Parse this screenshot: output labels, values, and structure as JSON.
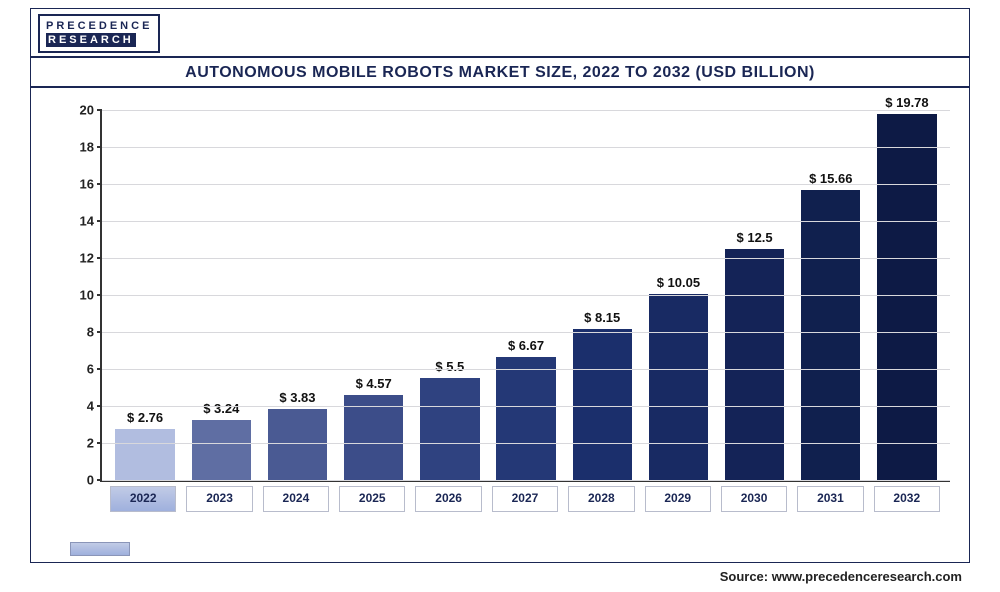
{
  "logo": {
    "line1": "PRECEDENCE",
    "line2": "RESEARCH"
  },
  "title": "AUTONOMOUS MOBILE ROBOTS MARKET SIZE, 2022 TO 2032 (USD BILLION)",
  "source": "Source: www.precedenceresearch.com",
  "chart": {
    "type": "bar",
    "categories": [
      "2022",
      "2023",
      "2024",
      "2025",
      "2026",
      "2027",
      "2028",
      "2029",
      "2030",
      "2031",
      "2032"
    ],
    "value_labels": [
      "$ 2.76",
      "$ 3.24",
      "$ 3.83",
      "$ 4.57",
      "$ 5.5",
      "$ 6.67",
      "$ 8.15",
      "$ 10.05",
      "$ 12.5",
      "$ 15.66",
      "$ 19.78"
    ],
    "values": [
      2.76,
      3.24,
      3.83,
      4.57,
      5.5,
      6.67,
      8.15,
      10.05,
      12.5,
      15.66,
      19.78
    ],
    "bar_colors": [
      "#b1bde0",
      "#5f6ea3",
      "#4a5a93",
      "#3c4d89",
      "#2f4280",
      "#243876",
      "#1b2f6c",
      "#182a63",
      "#142357",
      "#10204e",
      "#0d1a45"
    ],
    "ylim": [
      0,
      20
    ],
    "ytick_step": 2,
    "yticks": [
      "0",
      "2",
      "4",
      "6",
      "8",
      "10",
      "12",
      "14",
      "16",
      "18",
      "20"
    ],
    "background_color": "#ffffff",
    "grid_color": "#d8d8dc",
    "axis_color": "#333333",
    "label_fontsize": 13,
    "bar_width": 0.78,
    "highlight_index": 0
  }
}
